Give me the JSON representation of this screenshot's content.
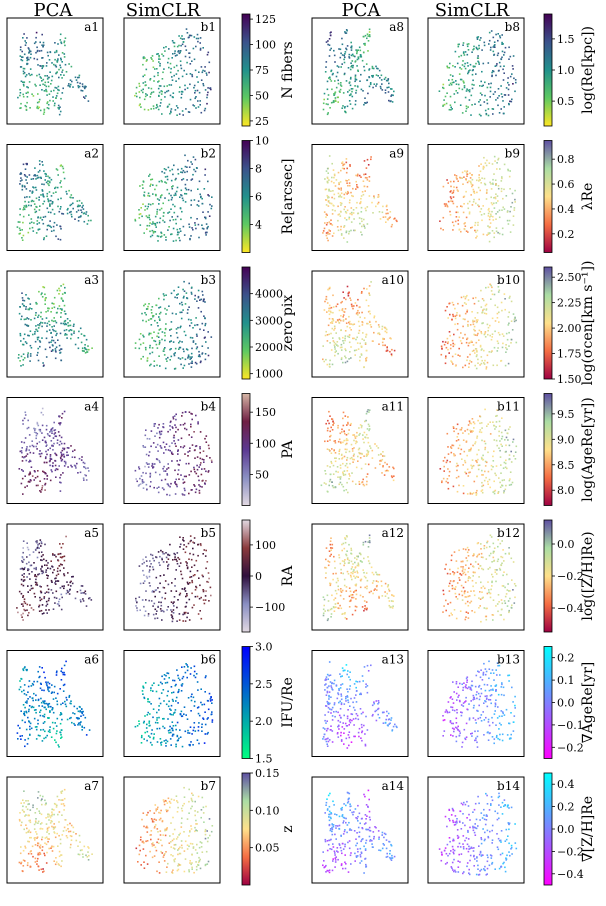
{
  "headers": [
    "PCA",
    "SimCLR",
    "PCA",
    "SimCLR"
  ],
  "chart_data": [
    {
      "type": "scatter",
      "shape": "pca",
      "labels": [
        "a1",
        "b1"
      ],
      "colorbar": {
        "label": "N fibers",
        "ticks": [
          "125",
          "100",
          "75",
          "50",
          "25"
        ],
        "colors": [
          "#fde725",
          "#5ec962",
          "#21918c",
          "#3b528b",
          "#440154"
        ],
        "range": [
          20,
          130
        ]
      }
    },
    {
      "type": "scatter",
      "shape": "pca",
      "labels": [
        "a2",
        "b2"
      ],
      "colorbar": {
        "label": "Re[arcsec]",
        "ticks": [
          "10",
          "8",
          "6",
          "4"
        ],
        "colors": [
          "#fde725",
          "#5ec962",
          "#21918c",
          "#3b528b",
          "#440154"
        ],
        "range": [
          2,
          10
        ]
      }
    },
    {
      "type": "scatter",
      "shape": "pca",
      "labels": [
        "a3",
        "b3"
      ],
      "colorbar": {
        "label": "zero pix",
        "ticks": [
          "4000",
          "3000",
          "2000",
          "1000"
        ],
        "colors": [
          "#fde725",
          "#5ec962",
          "#21918c",
          "#3b528b",
          "#440154"
        ],
        "range": [
          800,
          5000
        ]
      }
    },
    {
      "type": "scatter",
      "shape": "pca",
      "labels": [
        "a4",
        "b4"
      ],
      "colorbar": {
        "label": "PA",
        "ticks": [
          "150",
          "100",
          "50"
        ],
        "colors": [
          "#e2d9e2",
          "#8a8fc2",
          "#5b3891",
          "#6f1f43",
          "#d6b7a6"
        ],
        "range": [
          0,
          180
        ]
      }
    },
    {
      "type": "scatter",
      "shape": "pca",
      "labels": [
        "a5",
        "b5"
      ],
      "colorbar": {
        "label": "RA",
        "ticks": [
          "100",
          "0",
          "−100"
        ],
        "colors": [
          "#e2d9e2",
          "#8a8fc2",
          "#2f0f3d",
          "#8a3a3c",
          "#e2d9e2"
        ],
        "range": [
          -180,
          180
        ]
      }
    },
    {
      "type": "scatter",
      "shape": "pca",
      "labels": [
        "a6",
        "b6"
      ],
      "colorbar": {
        "label": "IFU/Re",
        "ticks": [
          "3.0",
          "2.5",
          "2.0",
          "1.5"
        ],
        "colors": [
          "#00ff80",
          "#00c0a0",
          "#0080c0",
          "#0040e0",
          "#0000ff"
        ],
        "range": [
          1.5,
          3.0
        ]
      }
    },
    {
      "type": "scatter",
      "shape": "pca",
      "labels": [
        "a7",
        "b7"
      ],
      "colorbar": {
        "label": "z",
        "ticks": [
          "0.15",
          "0.10",
          "0.05"
        ],
        "colors": [
          "#9e0142",
          "#f46d43",
          "#fee08b",
          "#abdda4",
          "#5e4fa2"
        ],
        "range": [
          0,
          0.15
        ]
      }
    },
    {
      "type": "scatter",
      "shape": "pca",
      "labels": [
        "a8",
        "b8"
      ],
      "colorbar": {
        "label": "log(Re[kpc])",
        "ticks": [
          "1.5",
          "1.0",
          "0.5"
        ],
        "colors": [
          "#fde725",
          "#5ec962",
          "#21918c",
          "#3b528b",
          "#440154"
        ],
        "range": [
          0.1,
          1.9
        ]
      }
    },
    {
      "type": "scatter",
      "shape": "pca",
      "labels": [
        "a9",
        "b9"
      ],
      "colorbar": {
        "label": "λRe",
        "ticks": [
          "0.8",
          "0.6",
          "0.4",
          "0.2"
        ],
        "colors": [
          "#9e0142",
          "#f46d43",
          "#fee08b",
          "#abdda4",
          "#5e4fa2"
        ],
        "range": [
          0.05,
          0.95
        ]
      }
    },
    {
      "type": "scatter",
      "shape": "pca",
      "labels": [
        "a10",
        "b10"
      ],
      "colorbar": {
        "label": "log(σcen[km s⁻¹])",
        "ticks": [
          "2.50",
          "2.25",
          "2.00",
          "1.75",
          "1.50"
        ],
        "colors": [
          "#9e0142",
          "#f46d43",
          "#fee08b",
          "#abdda4",
          "#5e4fa2"
        ],
        "range": [
          1.5,
          2.6
        ]
      }
    },
    {
      "type": "scatter",
      "shape": "pca",
      "labels": [
        "a11",
        "b11"
      ],
      "colorbar": {
        "label": "log(AgeRe[yr])",
        "ticks": [
          "9.5",
          "9.0",
          "8.5",
          "8.0"
        ],
        "colors": [
          "#9e0142",
          "#f46d43",
          "#fee08b",
          "#abdda4",
          "#5e4fa2"
        ],
        "range": [
          7.7,
          9.9
        ]
      }
    },
    {
      "type": "scatter",
      "shape": "pca",
      "labels": [
        "a12",
        "b12"
      ],
      "colorbar": {
        "label": "log([Z/H]Re)",
        "ticks": [
          "0.0",
          "−0.2",
          "−0.4"
        ],
        "colors": [
          "#9e0142",
          "#f46d43",
          "#fee08b",
          "#abdda4",
          "#5e4fa2"
        ],
        "range": [
          -0.55,
          0.15
        ]
      }
    },
    {
      "type": "scatter",
      "shape": "pca",
      "labels": [
        "a13",
        "b13"
      ],
      "colorbar": {
        "label": "∇AgeRe[yr]",
        "ticks": [
          "0.2",
          "0.1",
          "0.0",
          "−0.1",
          "−0.2"
        ],
        "colors": [
          "#ff00ff",
          "#bf40ff",
          "#8080ff",
          "#40bfff",
          "#00ffff"
        ],
        "range": [
          -0.25,
          0.25
        ]
      }
    },
    {
      "type": "scatter",
      "shape": "pca",
      "labels": [
        "a14",
        "b14"
      ],
      "colorbar": {
        "label": "∇[Z/H]Re",
        "ticks": [
          "0.4",
          "0.2",
          "0.0",
          "−0.2",
          "−0.4"
        ],
        "colors": [
          "#ff00ff",
          "#bf40ff",
          "#8080ff",
          "#40bfff",
          "#00ffff"
        ],
        "range": [
          -0.5,
          0.5
        ]
      }
    }
  ]
}
